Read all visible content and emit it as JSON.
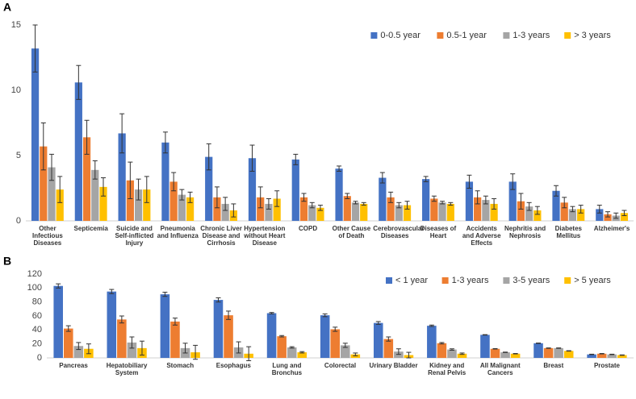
{
  "chart_data": [
    {
      "type": "bar",
      "panel": "A",
      "categories": [
        "Other Infectious Diseases",
        "Septicemia",
        "Suicide and Self-inflicted Injury",
        "Pneumonia and Influenza",
        "Chronic Liver Disease and Cirrhosis",
        "Hypertension without Heart Disease",
        "COPD",
        "Other Cause of Death",
        "Cerebrovascular Diseases",
        "Diseases of Heart",
        "Accidents and Adverse Effects",
        "Nephritis and Nephrosis",
        "Diabetes Mellitus",
        "Alzheimer's"
      ],
      "series": [
        {
          "name": "0-0.5 year",
          "color": "#4472c4",
          "values": [
            13.2,
            10.6,
            6.7,
            6.0,
            4.9,
            4.8,
            4.7,
            4.0,
            3.3,
            3.2,
            3.0,
            3.0,
            2.3,
            0.9
          ],
          "errors": [
            1.8,
            1.3,
            1.5,
            0.8,
            1.0,
            1.0,
            0.4,
            0.2,
            0.4,
            0.2,
            0.5,
            0.6,
            0.4,
            0.3
          ]
        },
        {
          "name": "0.5-1 year",
          "color": "#ed7d31",
          "values": [
            5.7,
            6.4,
            3.1,
            3.0,
            1.8,
            1.8,
            1.8,
            1.9,
            1.8,
            1.7,
            1.8,
            1.5,
            1.4,
            0.5
          ],
          "errors": [
            1.8,
            1.3,
            1.4,
            0.7,
            0.8,
            0.8,
            0.3,
            0.2,
            0.4,
            0.2,
            0.5,
            0.6,
            0.4,
            0.2
          ]
        },
        {
          "name": "1-3 years",
          "color": "#a5a5a5",
          "values": [
            4.1,
            3.9,
            2.4,
            2.0,
            1.3,
            1.3,
            1.2,
            1.4,
            1.2,
            1.4,
            1.6,
            1.1,
            0.9,
            0.4
          ],
          "errors": [
            1.0,
            0.7,
            0.8,
            0.4,
            0.5,
            0.4,
            0.2,
            0.1,
            0.2,
            0.1,
            0.3,
            0.3,
            0.2,
            0.2
          ]
        },
        {
          "name": "> 3 years",
          "color": "#ffc000",
          "values": [
            2.4,
            2.6,
            2.4,
            1.8,
            0.8,
            1.7,
            1.0,
            1.3,
            1.2,
            1.3,
            1.3,
            0.8,
            0.9,
            0.6
          ],
          "errors": [
            1.0,
            0.7,
            1.0,
            0.4,
            0.5,
            0.6,
            0.2,
            0.1,
            0.3,
            0.1,
            0.4,
            0.3,
            0.3,
            0.2
          ]
        }
      ],
      "ylim": [
        0,
        15
      ],
      "yticks": [
        0,
        5,
        10,
        15
      ],
      "grid": false,
      "legend": "upper right"
    },
    {
      "type": "bar",
      "panel": "B",
      "categories": [
        "Pancreas",
        "Hepatobiliary System",
        "Stomach",
        "Esophagus",
        "Lung and Bronchus",
        "Colorectal",
        "Urinary Bladder",
        "Kidney and Renal Pelvis",
        "All Malignant Cancers",
        "Breast",
        "Prostate"
      ],
      "series": [
        {
          "name": "< 1 year",
          "color": "#4472c4",
          "values": [
            103,
            95,
            91,
            83,
            64,
            61,
            50,
            46,
            33,
            21,
            5
          ],
          "errors": [
            3,
            3,
            3,
            3,
            1,
            2,
            2,
            1,
            0.3,
            0.3,
            0.3
          ]
        },
        {
          "name": "1-3 years",
          "color": "#ed7d31",
          "values": [
            42,
            55,
            52,
            61,
            31,
            41,
            27,
            21,
            13,
            14,
            6
          ],
          "errors": [
            4,
            5,
            5,
            6,
            1,
            3,
            3,
            1,
            0.3,
            0.3,
            0.3
          ]
        },
        {
          "name": "3-5 years",
          "color": "#a5a5a5",
          "values": [
            17,
            22,
            14,
            15,
            15,
            18,
            9,
            12,
            8,
            14,
            5
          ],
          "errors": [
            5,
            8,
            7,
            8,
            1,
            3,
            4,
            1,
            0.3,
            0.3,
            0.3
          ]
        },
        {
          "name": "> 5 years",
          "color": "#ffc000",
          "values": [
            13,
            14,
            8,
            6,
            8,
            5,
            4,
            6,
            6,
            10,
            4
          ],
          "errors": [
            7,
            10,
            10,
            10,
            1,
            2,
            4,
            1,
            0.3,
            0.3,
            0.3
          ]
        }
      ],
      "ylim": [
        0,
        120
      ],
      "yticks": [
        0,
        20,
        40,
        60,
        80,
        100,
        120
      ],
      "grid": false,
      "legend": "upper right"
    }
  ]
}
